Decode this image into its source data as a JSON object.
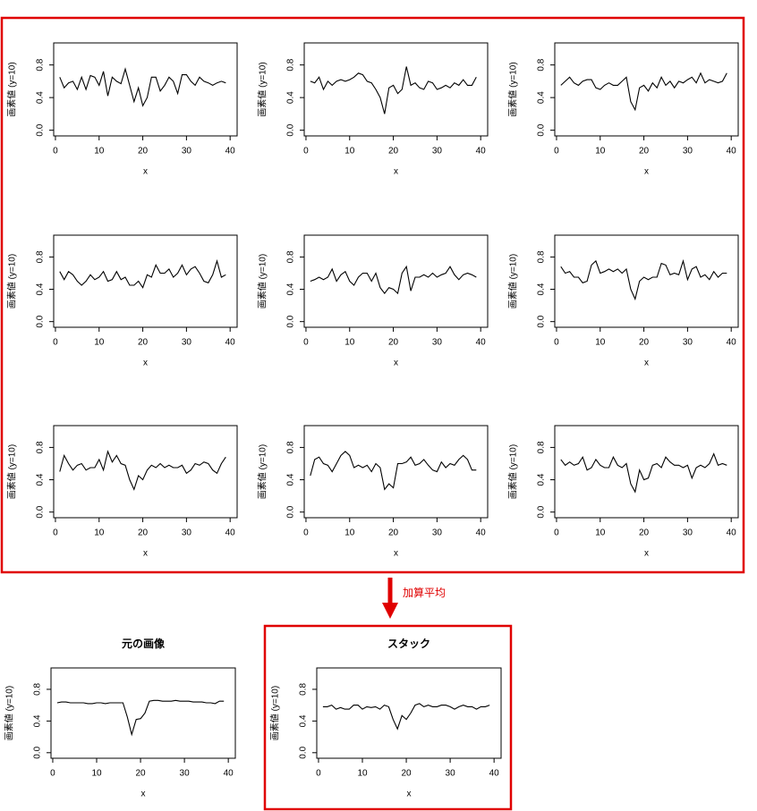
{
  "annotation": "加算平均",
  "chart_data": [
    {
      "type": "line",
      "xlabel": "x",
      "ylabel": "画素値 (y=10)",
      "color": "#000000",
      "x": [
        1,
        2,
        3,
        4,
        5,
        6,
        7,
        8,
        9,
        10,
        11,
        12,
        13,
        14,
        15,
        16,
        17,
        18,
        19,
        20,
        21,
        22,
        23,
        24,
        25,
        26,
        27,
        28,
        29,
        30,
        31,
        32,
        33,
        34,
        35,
        36,
        37,
        38,
        39
      ],
      "values": [
        0.65,
        0.52,
        0.58,
        0.6,
        0.5,
        0.65,
        0.5,
        0.67,
        0.65,
        0.55,
        0.72,
        0.42,
        0.65,
        0.6,
        0.57,
        0.75,
        0.55,
        0.35,
        0.52,
        0.3,
        0.4,
        0.65,
        0.65,
        0.48,
        0.55,
        0.65,
        0.6,
        0.45,
        0.68,
        0.68,
        0.6,
        0.55,
        0.65,
        0.6,
        0.58,
        0.55,
        0.58,
        0.6,
        0.58
      ],
      "xlim": [
        -0.4,
        41.6
      ],
      "ylim": [
        -0.07,
        1.07
      ],
      "xticks": [
        0,
        10,
        20,
        30,
        40
      ],
      "yticks": [
        {
          "value": 0,
          "label": "0.0"
        },
        0.4,
        0.8
      ]
    },
    {
      "type": "line",
      "xlabel": "x",
      "ylabel": "画素値 (y=10)",
      "color": "#000000",
      "x": [
        1,
        2,
        3,
        4,
        5,
        6,
        7,
        8,
        9,
        10,
        11,
        12,
        13,
        14,
        15,
        16,
        17,
        18,
        19,
        20,
        21,
        22,
        23,
        24,
        25,
        26,
        27,
        28,
        29,
        30,
        31,
        32,
        33,
        34,
        35,
        36,
        37,
        38,
        39
      ],
      "values": [
        0.6,
        0.58,
        0.65,
        0.5,
        0.6,
        0.55,
        0.6,
        0.62,
        0.6,
        0.62,
        0.65,
        0.7,
        0.68,
        0.6,
        0.58,
        0.5,
        0.4,
        0.2,
        0.52,
        0.55,
        0.45,
        0.5,
        0.78,
        0.55,
        0.58,
        0.52,
        0.5,
        0.6,
        0.58,
        0.5,
        0.52,
        0.55,
        0.52,
        0.58,
        0.55,
        0.62,
        0.55,
        0.55,
        0.65
      ],
      "xlim": [
        -0.4,
        41.6
      ],
      "ylim": [
        -0.07,
        1.07
      ],
      "xticks": [
        0,
        10,
        20,
        30,
        40
      ],
      "yticks": [
        {
          "value": 0,
          "label": "0.0"
        },
        0.4,
        0.8
      ]
    },
    {
      "type": "line",
      "xlabel": "x",
      "ylabel": "画素値 (y=10)",
      "color": "#000000",
      "x": [
        1,
        2,
        3,
        4,
        5,
        6,
        7,
        8,
        9,
        10,
        11,
        12,
        13,
        14,
        15,
        16,
        17,
        18,
        19,
        20,
        21,
        22,
        23,
        24,
        25,
        26,
        27,
        28,
        29,
        30,
        31,
        32,
        33,
        34,
        35,
        36,
        37,
        38,
        39
      ],
      "values": [
        0.55,
        0.6,
        0.65,
        0.58,
        0.55,
        0.6,
        0.62,
        0.62,
        0.52,
        0.5,
        0.55,
        0.58,
        0.55,
        0.55,
        0.6,
        0.65,
        0.35,
        0.25,
        0.52,
        0.55,
        0.48,
        0.58,
        0.52,
        0.65,
        0.55,
        0.6,
        0.52,
        0.6,
        0.58,
        0.62,
        0.65,
        0.58,
        0.7,
        0.58,
        0.62,
        0.6,
        0.58,
        0.6,
        0.7
      ],
      "xlim": [
        -0.4,
        41.6
      ],
      "ylim": [
        -0.07,
        1.07
      ],
      "xticks": [
        0,
        10,
        20,
        30,
        40
      ],
      "yticks": [
        {
          "value": 0,
          "label": "0.0"
        },
        0.4,
        0.8
      ]
    },
    {
      "type": "line",
      "xlabel": "x",
      "ylabel": "画素値 (y=10)",
      "color": "#000000",
      "x": [
        1,
        2,
        3,
        4,
        5,
        6,
        7,
        8,
        9,
        10,
        11,
        12,
        13,
        14,
        15,
        16,
        17,
        18,
        19,
        20,
        21,
        22,
        23,
        24,
        25,
        26,
        27,
        28,
        29,
        30,
        31,
        32,
        33,
        34,
        35,
        36,
        37,
        38,
        39
      ],
      "values": [
        0.62,
        0.52,
        0.62,
        0.58,
        0.5,
        0.45,
        0.5,
        0.58,
        0.52,
        0.55,
        0.62,
        0.5,
        0.52,
        0.62,
        0.52,
        0.55,
        0.45,
        0.45,
        0.5,
        0.42,
        0.58,
        0.55,
        0.7,
        0.6,
        0.6,
        0.65,
        0.55,
        0.6,
        0.7,
        0.58,
        0.65,
        0.68,
        0.6,
        0.5,
        0.48,
        0.58,
        0.75,
        0.55,
        0.58
      ],
      "xlim": [
        -0.4,
        41.6
      ],
      "ylim": [
        -0.07,
        1.07
      ],
      "xticks": [
        0,
        10,
        20,
        30,
        40
      ],
      "yticks": [
        {
          "value": 0,
          "label": "0.0"
        },
        0.4,
        0.8
      ]
    },
    {
      "type": "line",
      "xlabel": "x",
      "ylabel": "画素値 (y=10)",
      "color": "#000000",
      "x": [
        1,
        2,
        3,
        4,
        5,
        6,
        7,
        8,
        9,
        10,
        11,
        12,
        13,
        14,
        15,
        16,
        17,
        18,
        19,
        20,
        21,
        22,
        23,
        24,
        25,
        26,
        27,
        28,
        29,
        30,
        31,
        32,
        33,
        34,
        35,
        36,
        37,
        38,
        39
      ],
      "values": [
        0.5,
        0.52,
        0.55,
        0.52,
        0.55,
        0.65,
        0.5,
        0.58,
        0.62,
        0.5,
        0.45,
        0.55,
        0.6,
        0.6,
        0.5,
        0.6,
        0.42,
        0.35,
        0.42,
        0.4,
        0.35,
        0.6,
        0.68,
        0.38,
        0.55,
        0.55,
        0.58,
        0.55,
        0.6,
        0.55,
        0.58,
        0.6,
        0.68,
        0.58,
        0.52,
        0.58,
        0.6,
        0.58,
        0.55
      ],
      "xlim": [
        -0.4,
        41.6
      ],
      "ylim": [
        -0.07,
        1.07
      ],
      "xticks": [
        0,
        10,
        20,
        30,
        40
      ],
      "yticks": [
        {
          "value": 0,
          "label": "0.0"
        },
        0.4,
        0.8
      ]
    },
    {
      "type": "line",
      "xlabel": "x",
      "ylabel": "画素値 (y=10)",
      "color": "#000000",
      "x": [
        1,
        2,
        3,
        4,
        5,
        6,
        7,
        8,
        9,
        10,
        11,
        12,
        13,
        14,
        15,
        16,
        17,
        18,
        19,
        20,
        21,
        22,
        23,
        24,
        25,
        26,
        27,
        28,
        29,
        30,
        31,
        32,
        33,
        34,
        35,
        36,
        37,
        38,
        39
      ],
      "values": [
        0.68,
        0.6,
        0.62,
        0.55,
        0.55,
        0.48,
        0.5,
        0.7,
        0.75,
        0.6,
        0.62,
        0.65,
        0.62,
        0.65,
        0.6,
        0.65,
        0.4,
        0.28,
        0.5,
        0.55,
        0.52,
        0.55,
        0.55,
        0.72,
        0.7,
        0.58,
        0.6,
        0.58,
        0.75,
        0.52,
        0.65,
        0.68,
        0.55,
        0.58,
        0.52,
        0.62,
        0.55,
        0.6,
        0.6
      ],
      "xlim": [
        -0.4,
        41.6
      ],
      "ylim": [
        -0.07,
        1.07
      ],
      "xticks": [
        0,
        10,
        20,
        30,
        40
      ],
      "yticks": [
        {
          "value": 0,
          "label": "0.0"
        },
        0.4,
        0.8
      ]
    },
    {
      "type": "line",
      "xlabel": "x",
      "ylabel": "画素値 (y=10)",
      "color": "#000000",
      "x": [
        1,
        2,
        3,
        4,
        5,
        6,
        7,
        8,
        9,
        10,
        11,
        12,
        13,
        14,
        15,
        16,
        17,
        18,
        19,
        20,
        21,
        22,
        23,
        24,
        25,
        26,
        27,
        28,
        29,
        30,
        31,
        32,
        33,
        34,
        35,
        36,
        37,
        38,
        39
      ],
      "values": [
        0.5,
        0.7,
        0.6,
        0.52,
        0.58,
        0.6,
        0.52,
        0.55,
        0.55,
        0.65,
        0.52,
        0.75,
        0.62,
        0.7,
        0.6,
        0.58,
        0.4,
        0.28,
        0.45,
        0.4,
        0.52,
        0.58,
        0.55,
        0.6,
        0.55,
        0.58,
        0.55,
        0.55,
        0.58,
        0.48,
        0.52,
        0.6,
        0.58,
        0.62,
        0.6,
        0.52,
        0.48,
        0.6,
        0.68
      ],
      "xlim": [
        -0.4,
        41.6
      ],
      "ylim": [
        -0.07,
        1.07
      ],
      "xticks": [
        0,
        10,
        20,
        30,
        40
      ],
      "yticks": [
        {
          "value": 0,
          "label": "0.0"
        },
        0.4,
        0.8
      ]
    },
    {
      "type": "line",
      "xlabel": "x",
      "ylabel": "画素値 (y=10)",
      "color": "#000000",
      "x": [
        1,
        2,
        3,
        4,
        5,
        6,
        7,
        8,
        9,
        10,
        11,
        12,
        13,
        14,
        15,
        16,
        17,
        18,
        19,
        20,
        21,
        22,
        23,
        24,
        25,
        26,
        27,
        28,
        29,
        30,
        31,
        32,
        33,
        34,
        35,
        36,
        37,
        38,
        39
      ],
      "values": [
        0.45,
        0.65,
        0.68,
        0.6,
        0.58,
        0.5,
        0.6,
        0.7,
        0.75,
        0.7,
        0.55,
        0.58,
        0.55,
        0.58,
        0.5,
        0.6,
        0.55,
        0.28,
        0.35,
        0.3,
        0.6,
        0.6,
        0.62,
        0.68,
        0.58,
        0.6,
        0.65,
        0.58,
        0.52,
        0.5,
        0.62,
        0.55,
        0.6,
        0.58,
        0.65,
        0.7,
        0.65,
        0.52,
        0.52
      ],
      "xlim": [
        -0.4,
        41.6
      ],
      "ylim": [
        -0.07,
        1.07
      ],
      "xticks": [
        0,
        10,
        20,
        30,
        40
      ],
      "yticks": [
        {
          "value": 0,
          "label": "0.0"
        },
        0.4,
        0.8
      ]
    },
    {
      "type": "line",
      "xlabel": "x",
      "ylabel": "画素値 (y=10)",
      "color": "#000000",
      "x": [
        1,
        2,
        3,
        4,
        5,
        6,
        7,
        8,
        9,
        10,
        11,
        12,
        13,
        14,
        15,
        16,
        17,
        18,
        19,
        20,
        21,
        22,
        23,
        24,
        25,
        26,
        27,
        28,
        29,
        30,
        31,
        32,
        33,
        34,
        35,
        36,
        37,
        38,
        39
      ],
      "values": [
        0.65,
        0.58,
        0.62,
        0.58,
        0.6,
        0.68,
        0.52,
        0.55,
        0.65,
        0.58,
        0.55,
        0.55,
        0.68,
        0.58,
        0.55,
        0.6,
        0.35,
        0.25,
        0.52,
        0.4,
        0.42,
        0.58,
        0.6,
        0.55,
        0.68,
        0.62,
        0.58,
        0.58,
        0.55,
        0.58,
        0.42,
        0.55,
        0.58,
        0.55,
        0.6,
        0.72,
        0.58,
        0.6,
        0.58
      ],
      "xlim": [
        -0.4,
        41.6
      ],
      "ylim": [
        -0.07,
        1.07
      ],
      "xticks": [
        0,
        10,
        20,
        30,
        40
      ],
      "yticks": [
        {
          "value": 0,
          "label": "0.0"
        },
        0.4,
        0.8
      ]
    },
    {
      "type": "line",
      "title": "元の画像",
      "xlabel": "x",
      "ylabel": "画素値 (y=10)",
      "color": "#000000",
      "x": [
        1,
        2,
        3,
        4,
        5,
        6,
        7,
        8,
        9,
        10,
        11,
        12,
        13,
        14,
        15,
        16,
        17,
        18,
        19,
        20,
        21,
        22,
        23,
        24,
        25,
        26,
        27,
        28,
        29,
        30,
        31,
        32,
        33,
        34,
        35,
        36,
        37,
        38,
        39
      ],
      "values": [
        0.63,
        0.64,
        0.64,
        0.63,
        0.63,
        0.63,
        0.63,
        0.62,
        0.62,
        0.63,
        0.63,
        0.62,
        0.63,
        0.63,
        0.63,
        0.63,
        0.45,
        0.23,
        0.42,
        0.43,
        0.5,
        0.65,
        0.66,
        0.66,
        0.65,
        0.65,
        0.65,
        0.66,
        0.65,
        0.65,
        0.65,
        0.64,
        0.64,
        0.64,
        0.63,
        0.63,
        0.62,
        0.65,
        0.65
      ],
      "xlim": [
        -0.4,
        41.6
      ],
      "ylim": [
        -0.07,
        1.07
      ],
      "xticks": [
        0,
        10,
        20,
        30,
        40
      ],
      "yticks": [
        {
          "value": 0,
          "label": "0.0"
        },
        0.4,
        0.8
      ]
    },
    {
      "type": "line",
      "title": "スタック",
      "xlabel": "x",
      "ylabel": "画素値 (y=10)",
      "color": "#000000",
      "x": [
        1,
        2,
        3,
        4,
        5,
        6,
        7,
        8,
        9,
        10,
        11,
        12,
        13,
        14,
        15,
        16,
        17,
        18,
        19,
        20,
        21,
        22,
        23,
        24,
        25,
        26,
        27,
        28,
        29,
        30,
        31,
        32,
        33,
        34,
        35,
        36,
        37,
        38,
        39
      ],
      "values": [
        0.58,
        0.58,
        0.6,
        0.55,
        0.57,
        0.55,
        0.55,
        0.6,
        0.6,
        0.55,
        0.58,
        0.57,
        0.58,
        0.55,
        0.6,
        0.58,
        0.42,
        0.3,
        0.47,
        0.42,
        0.5,
        0.6,
        0.62,
        0.58,
        0.6,
        0.58,
        0.58,
        0.6,
        0.6,
        0.58,
        0.55,
        0.58,
        0.6,
        0.58,
        0.58,
        0.55,
        0.58,
        0.58,
        0.6
      ],
      "xlim": [
        -0.4,
        41.6
      ],
      "ylim": [
        -0.07,
        1.07
      ],
      "xticks": [
        0,
        10,
        20,
        30,
        40
      ],
      "yticks": [
        {
          "value": 0,
          "label": "0.0"
        },
        0.4,
        0.8
      ]
    }
  ]
}
